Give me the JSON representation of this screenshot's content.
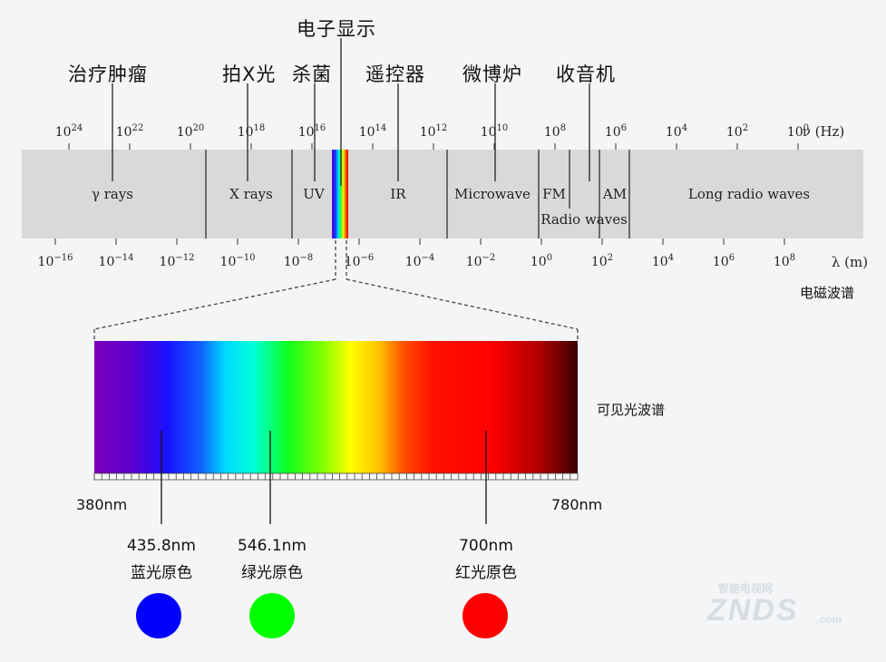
{
  "applications": [
    {
      "label": "电子显示"
    },
    {
      "label": "治疗肿瘤"
    },
    {
      "label": "拍X光"
    },
    {
      "label": "杀菌"
    },
    {
      "label": "遥控器"
    },
    {
      "label": "微博炉"
    },
    {
      "label": "收音机"
    }
  ],
  "spectrum": {
    "freq_axis_unit": "ν (Hz)",
    "freq_exponents": [
      "24",
      "22",
      "20",
      "18",
      "16",
      "14",
      "12",
      "10",
      "8",
      "6",
      "4",
      "2",
      "0"
    ],
    "wave_axis_unit": "λ (m)",
    "wave_exponents": [
      "−16",
      "−14",
      "−12",
      "−10",
      "−8",
      "−6",
      "−4",
      "−2",
      "0",
      "2",
      "4",
      "6",
      "8"
    ],
    "base": "10",
    "bands": [
      "γ rays",
      "X rays",
      "UV",
      "IR",
      "Microwave",
      "FM",
      "AM",
      "Radio waves",
      "Long radio waves"
    ],
    "caption": "电磁波谱"
  },
  "visible": {
    "caption": "可见光波谱",
    "start_label": "380nm",
    "end_label": "780nm",
    "primaries": [
      {
        "wavelength": "435.8nm",
        "name": "蓝光原色",
        "color": "#0000ff"
      },
      {
        "wavelength": "546.1nm",
        "name": "绿光原色",
        "color": "#00ff00"
      },
      {
        "wavelength": "700nm",
        "name": "红光原色",
        "color": "#ff0000"
      }
    ]
  },
  "watermark": {
    "text": "ZNDS",
    "suffix": ".com",
    "subtext": "智能电视网"
  }
}
